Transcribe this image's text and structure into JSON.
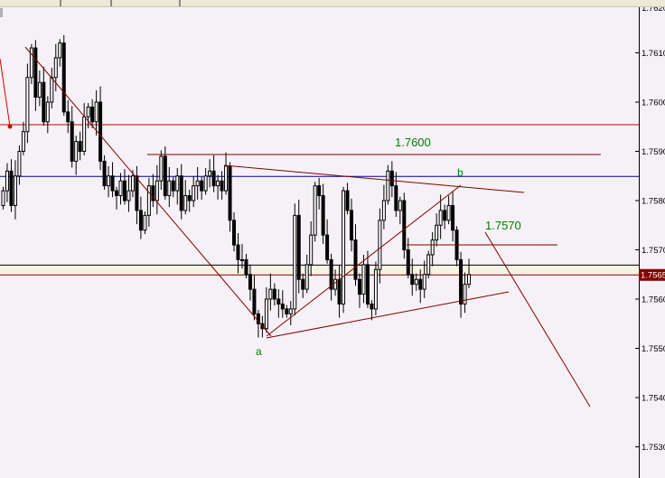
{
  "chart_data": {
    "type": "candlestick",
    "title": "",
    "y_ticks": [
      "1.7620",
      "1.7610",
      "1.7600",
      "1.7590",
      "1.7580",
      "1.7570",
      "1.7560",
      "1.7550",
      "1.7540",
      "1.7530"
    ],
    "ylim": [
      1.75265,
      1.76205
    ],
    "current_price": "1.7565",
    "closes": [
      1.7582,
      1.7586,
      1.7579,
      1.7585,
      1.759,
      1.7594,
      1.7605,
      1.7611,
      1.7601,
      1.7604,
      1.7596,
      1.76,
      1.7605,
      1.7609,
      1.7612,
      1.7598,
      1.7596,
      1.7588,
      1.7592,
      1.759,
      1.7597,
      1.7599,
      1.7596,
      1.76,
      1.7588,
      1.7583,
      1.7585,
      1.7582,
      1.7581,
      1.7584,
      1.758,
      1.7582,
      1.7585,
      1.7578,
      1.7574,
      1.7577,
      1.7583,
      1.758,
      1.7584,
      1.7589,
      1.7581,
      1.7584,
      1.7582,
      1.7585,
      1.7578,
      1.7581,
      1.758,
      1.7583,
      1.7584,
      1.7582,
      1.7585,
      1.7586,
      1.7583,
      1.7584,
      1.7582,
      1.7587,
      1.7576,
      1.7571,
      1.7568,
      1.7568,
      1.7565,
      1.7562,
      1.7557,
      1.7555,
      1.7554,
      1.756,
      1.7562,
      1.756,
      1.7559,
      1.7558,
      1.7557,
      1.7558,
      1.7577,
      1.7564,
      1.7562,
      1.7567,
      1.7573,
      1.7583,
      1.7581,
      1.7573,
      1.7568,
      1.7562,
      1.7564,
      1.7559,
      1.7582,
      1.7578,
      1.7572,
      1.7564,
      1.7561,
      1.7567,
      1.7559,
      1.7558,
      1.7566,
      1.7576,
      1.758,
      1.7586,
      1.7583,
      1.7578,
      1.758,
      1.757,
      1.7565,
      1.7563,
      1.7564,
      1.7562,
      1.7565,
      1.7569,
      1.7572,
      1.7575,
      1.7578,
      1.7576,
      1.7579,
      1.7574,
      1.7568,
      1.7559,
      1.7563,
      1.7565
    ],
    "horizontal_levels": [
      {
        "price": 1.75955,
        "color": "#cc0000"
      },
      {
        "price": 1.7585,
        "color": "#000099"
      },
      {
        "price": 1.7567,
        "color": "#000000"
      },
      {
        "price": 1.7565,
        "color": "#800000"
      }
    ],
    "annotations": {
      "level_1": "1.7600",
      "level_2": "1.7570",
      "point_a": "a",
      "point_b": "b"
    },
    "colors": {
      "up": "#ffffff",
      "down": "#000000",
      "trendline": "#800000",
      "label": "#008000",
      "band": "#f5f3e3",
      "price_tag": "#800000"
    }
  }
}
